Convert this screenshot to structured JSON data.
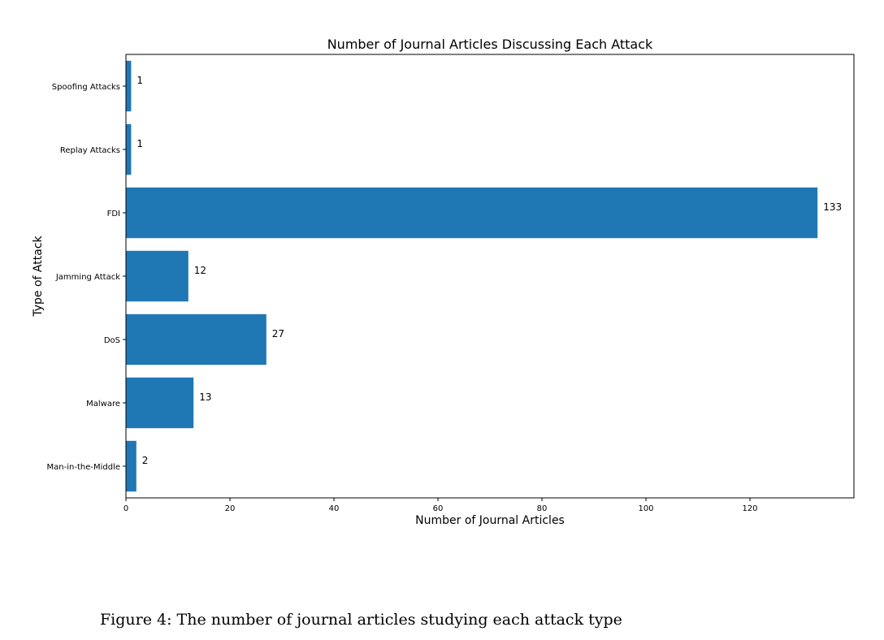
{
  "chart_data": {
    "type": "bar",
    "orientation": "horizontal",
    "title": "Number of Journal Articles Discussing Each Attack",
    "xlabel": "Number of Journal Articles",
    "ylabel": "Type of Attack",
    "categories": [
      "Spoofing Attacks",
      "Replay Attacks",
      "FDI",
      "Jamming Attack",
      "DoS",
      "Malware",
      "Man-in-the-Middle"
    ],
    "values": [
      1,
      1,
      133,
      12,
      27,
      13,
      2
    ],
    "xticks": [
      0,
      20,
      40,
      60,
      80,
      100,
      120
    ],
    "xlim": [
      0,
      140
    ],
    "grid": false,
    "bar_color": "#1f77b4"
  },
  "caption": "Figure 4: The number of journal articles studying each attack type"
}
